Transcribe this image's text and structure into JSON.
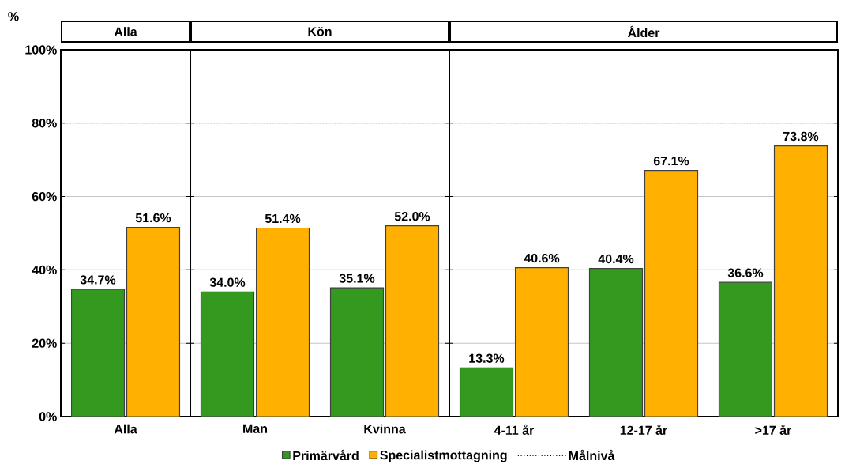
{
  "chart_data": [
    {
      "type": "bar",
      "title": "Alla",
      "ylabel": "%",
      "categories": [
        "Alla"
      ],
      "series": [
        {
          "name": "Primärvård",
          "color": "#339a1f",
          "values": [
            34.7
          ],
          "value_labels": [
            "34.7%"
          ]
        },
        {
          "name": "Specialistmottagning",
          "color": "#ffb000",
          "values": [
            51.6
          ],
          "value_labels": [
            "51.6%"
          ]
        }
      ],
      "ylim": [
        0,
        100
      ],
      "yticks": [
        {
          "value": 0,
          "label": "0%"
        },
        {
          "value": 20,
          "label": "20%"
        },
        {
          "value": 40,
          "label": "40%"
        },
        {
          "value": 60,
          "label": "60%"
        },
        {
          "value": 80,
          "label": "80%"
        },
        {
          "value": 100,
          "label": "100%"
        }
      ],
      "grid": "y",
      "legend": "bottom",
      "ref_lines": [
        {
          "axis": "y",
          "value": 80,
          "label": "Målnivå",
          "color": "#000000",
          "line_style": "dotted"
        }
      ]
    },
    {
      "type": "bar",
      "title": "Kön",
      "categories": [
        "Man",
        "Kvinna"
      ],
      "series": [
        {
          "color": "#339a1f",
          "values": [
            34.0,
            35.1
          ],
          "value_labels": [
            "34.0%",
            "35.1%"
          ]
        },
        {
          "color": "#ffb000",
          "values": [
            51.4,
            52.0
          ],
          "value_labels": [
            "51.4%",
            "52.0%"
          ]
        }
      ],
      "ylim": [
        0,
        100
      ],
      "grid": "y",
      "tick_labels": "x",
      "ref_lines": [
        {
          "axis": "y",
          "value": 80,
          "color": "#000000",
          "line_style": "dotted"
        }
      ]
    },
    {
      "type": "bar",
      "title": "Ålder",
      "categories": [
        "4-11 år",
        "12-17 år",
        ">17 år"
      ],
      "series": [
        {
          "color": "#339a1f",
          "values": [
            13.3,
            40.4,
            36.6
          ],
          "value_labels": [
            "13.3%",
            "40.4%",
            "36.6%"
          ]
        },
        {
          "color": "#ffb000",
          "values": [
            40.6,
            67.1,
            73.8
          ],
          "value_labels": [
            "40.6%",
            "67.1%",
            "73.8%"
          ]
        }
      ],
      "ylim": [
        0,
        100
      ],
      "grid": "y",
      "tick_labels": "x",
      "ref_lines": [
        {
          "axis": "y",
          "value": 80,
          "color": "#000000",
          "line_style": "dotted"
        }
      ]
    }
  ]
}
